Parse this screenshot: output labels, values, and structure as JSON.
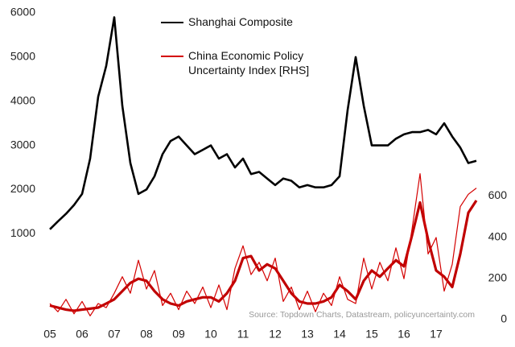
{
  "chart_data": {
    "type": "line",
    "annotation": "Source: Topdown Charts, Datastream, policyuncertainty.com",
    "x": [
      2005,
      2005.25,
      2005.5,
      2005.75,
      2006,
      2006.25,
      2006.5,
      2006.75,
      2007,
      2007.25,
      2007.5,
      2007.75,
      2008,
      2008.25,
      2008.5,
      2008.75,
      2009,
      2009.25,
      2009.5,
      2009.75,
      2010,
      2010.25,
      2010.5,
      2010.75,
      2011,
      2011.25,
      2011.5,
      2011.75,
      2012,
      2012.25,
      2012.5,
      2012.75,
      2013,
      2013.25,
      2013.5,
      2013.75,
      2014,
      2014.25,
      2014.5,
      2014.75,
      2015,
      2015.25,
      2015.5,
      2015.75,
      2016,
      2016.25,
      2016.5,
      2016.75,
      2017,
      2017.25,
      2017.5,
      2017.75,
      2018,
      2018.25
    ],
    "xlim": [
      2005,
      2018.25
    ],
    "xticks": [
      {
        "value": 2005,
        "label": "05"
      },
      {
        "value": 2006,
        "label": "06"
      },
      {
        "value": 2007,
        "label": "07"
      },
      {
        "value": 2008,
        "label": "08"
      },
      {
        "value": 2009,
        "label": "09"
      },
      {
        "value": 2010,
        "label": "10"
      },
      {
        "value": 2011,
        "label": "11"
      },
      {
        "value": 2012,
        "label": "12"
      },
      {
        "value": 2013,
        "label": "13"
      },
      {
        "value": 2014,
        "label": "14"
      },
      {
        "value": 2015,
        "label": "15"
      },
      {
        "value": 2016,
        "label": "16"
      },
      {
        "value": 2017,
        "label": "17"
      }
    ],
    "ylim": [
      -1000,
      6000
    ],
    "yticks": [
      1000,
      2000,
      3000,
      4000,
      5000,
      6000
    ],
    "y2lim": [
      0,
      1500
    ],
    "y2ticks": [
      0,
      200,
      400,
      600
    ],
    "grid": false,
    "series": [
      {
        "name": "Shanghai Composite",
        "color": "#000000",
        "width": 2.6,
        "values": [
          1100,
          1280,
          1450,
          1650,
          1900,
          2700,
          4100,
          4800,
          5900,
          3900,
          2600,
          1900,
          2000,
          2300,
          2800,
          3100,
          3200,
          3000,
          2800,
          2900,
          3000,
          2700,
          2800,
          2500,
          2700,
          2350,
          2400,
          2250,
          2100,
          2250,
          2200,
          2050,
          2100,
          2050,
          2050,
          2100,
          2300,
          3800,
          5000,
          3900,
          3000,
          3000,
          3000,
          3150,
          3250,
          3300,
          3300,
          3350,
          3250,
          3500,
          3200,
          2950,
          2600,
          2650
        ]
      },
      {
        "name": "China Economic Policy Uncertainty Index [RHS]",
        "color": "#d40000",
        "width": 1.2,
        "axis": "y2",
        "values": [
          90,
          50,
          110,
          40,
          100,
          30,
          90,
          70,
          140,
          220,
          140,
          300,
          160,
          250,
          80,
          140,
          60,
          150,
          90,
          170,
          70,
          180,
          60,
          260,
          370,
          230,
          290,
          200,
          310,
          100,
          170,
          60,
          150,
          50,
          140,
          80,
          220,
          110,
          90,
          310,
          160,
          290,
          200,
          360,
          210,
          450,
          720,
          330,
          410,
          150,
          280,
          560,
          620,
          650
        ]
      },
      {
        "color": "#c00000",
        "width": 3.2,
        "axis": "y2",
        "values": [
          80,
          70,
          60,
          55,
          60,
          65,
          70,
          90,
          110,
          150,
          190,
          210,
          200,
          150,
          110,
          90,
          80,
          100,
          110,
          120,
          120,
          100,
          140,
          200,
          310,
          320,
          250,
          280,
          260,
          200,
          140,
          100,
          90,
          90,
          100,
          120,
          180,
          150,
          110,
          200,
          250,
          220,
          260,
          300,
          270,
          420,
          580,
          400,
          250,
          220,
          170,
          330,
          530,
          590
        ]
      }
    ]
  }
}
